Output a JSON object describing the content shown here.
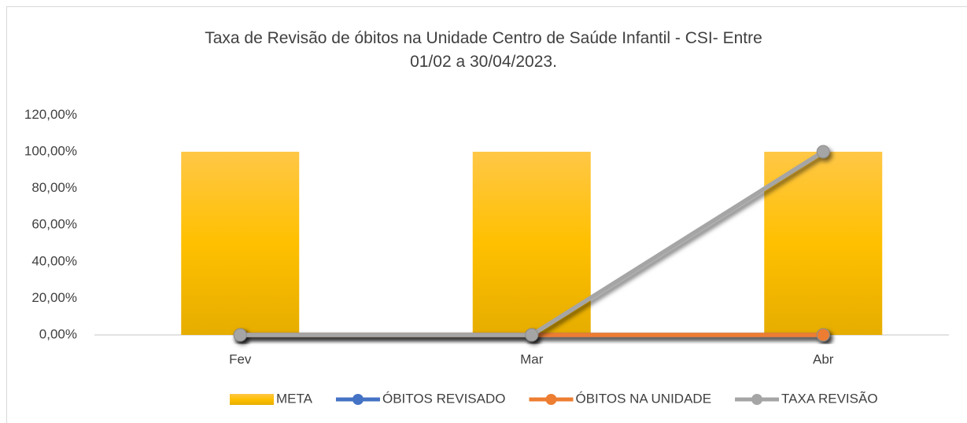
{
  "chart_data": {
    "type": "combo",
    "title": "Taxa de Revisão de óbitos na Unidade Centro de Saúde Infantil - CSI- Entre\n01/02 a 30/04/2023.",
    "categories": [
      "Fev",
      "Mar",
      "Abr"
    ],
    "series": [
      {
        "name": "META",
        "type": "bar",
        "color": "#ffc000",
        "values": [
          100,
          100,
          100
        ]
      },
      {
        "name": "ÓBITOS REVISADO",
        "type": "line",
        "color": "#4472c4",
        "values": [
          0,
          0,
          0
        ]
      },
      {
        "name": "ÓBITOS NA UNIDADE",
        "type": "line",
        "color": "#ed7d31",
        "values": [
          0,
          0,
          0
        ]
      },
      {
        "name": "TAXA REVISÃO",
        "type": "line",
        "color": "#a5a5a5",
        "values": [
          0,
          0,
          100
        ]
      }
    ],
    "ylim": [
      0,
      120
    ],
    "yticks": [
      {
        "value": 0,
        "label": "0,00%"
      },
      {
        "value": 20,
        "label": "20,00%"
      },
      {
        "value": 40,
        "label": "40,00%"
      },
      {
        "value": 60,
        "label": "60,00%"
      },
      {
        "value": 80,
        "label": "80,00%"
      },
      {
        "value": 100,
        "label": "100,00%"
      },
      {
        "value": 120,
        "label": "120,00%"
      }
    ],
    "grid": false,
    "legend": "bottom"
  }
}
